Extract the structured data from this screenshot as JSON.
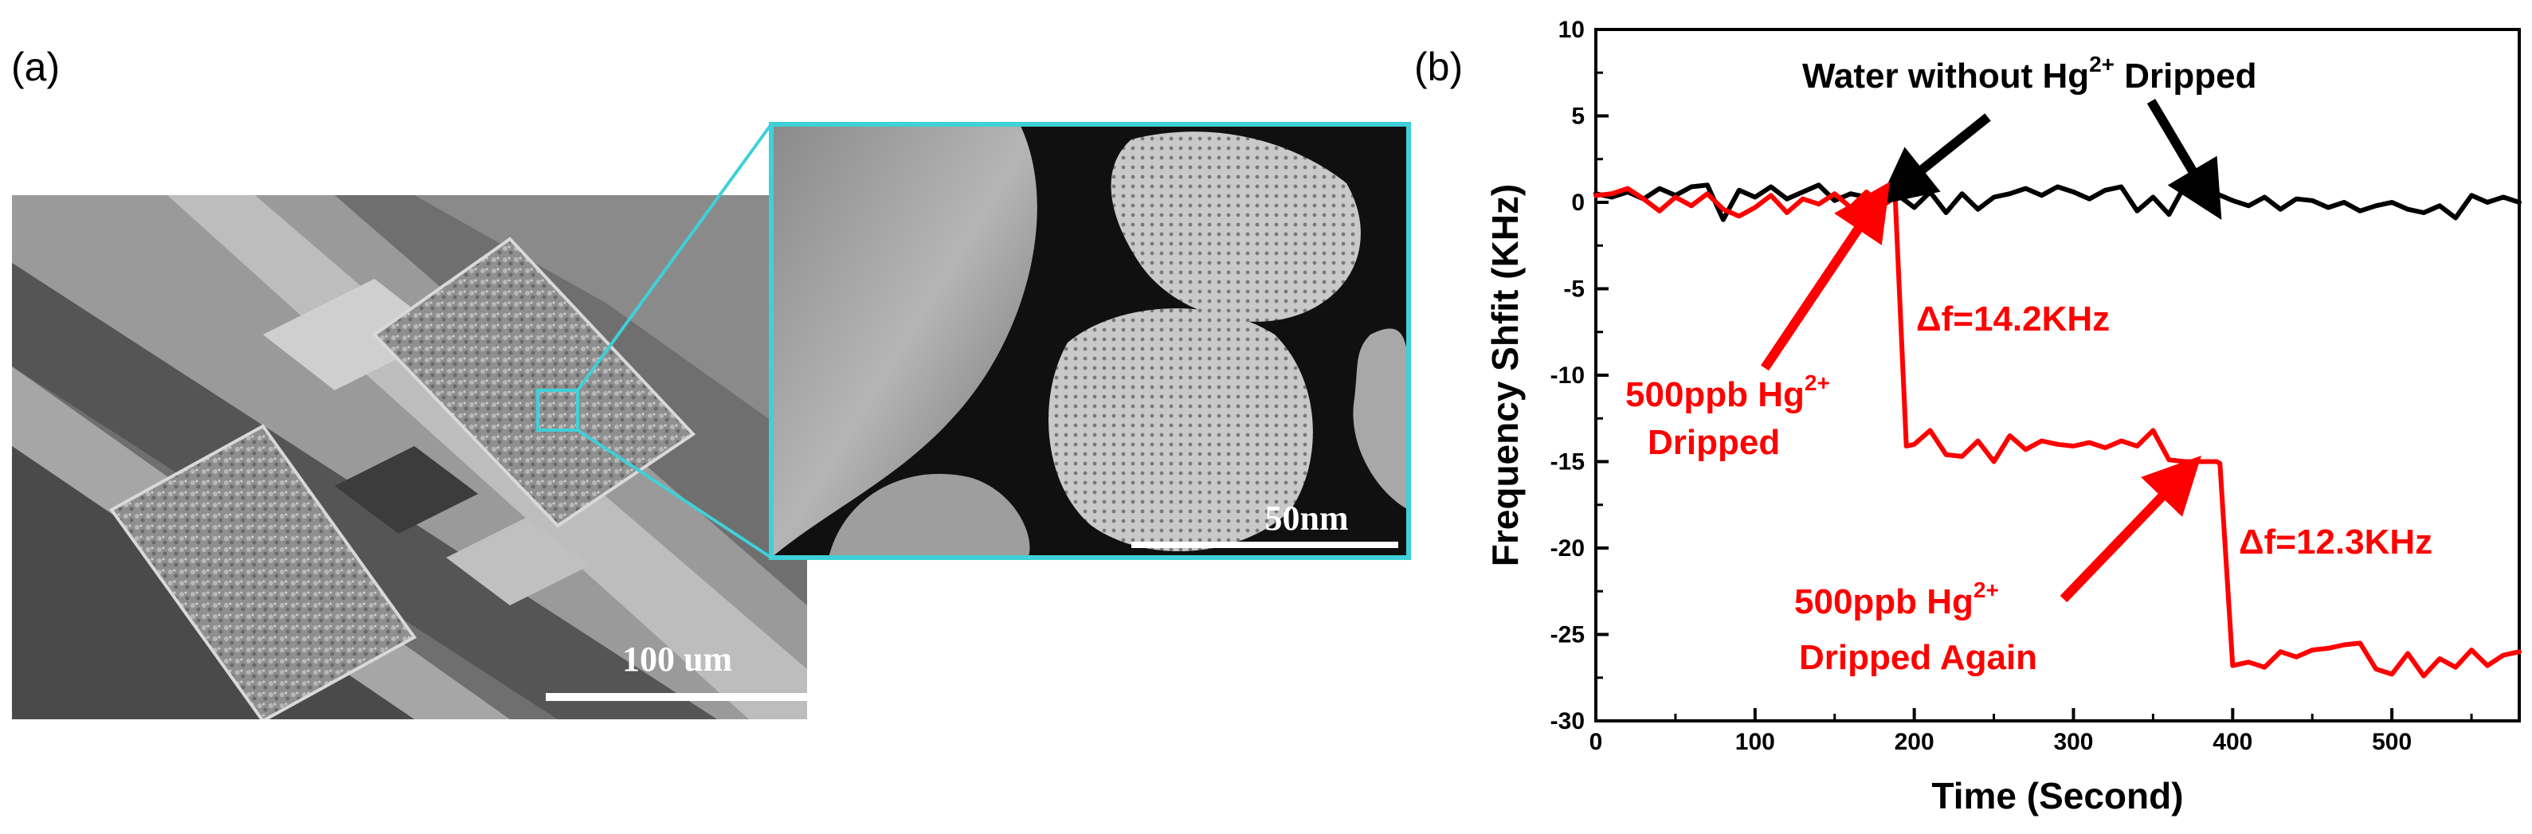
{
  "panel_labels": {
    "a": "(a)",
    "b": "(b)"
  },
  "sem_image": {
    "main_scale_label": "100 um",
    "inset_scale_label": "50nm",
    "highlight_color": "#3fd0d8"
  },
  "chart_data": {
    "type": "line",
    "xlabel": "Time (Second)",
    "ylabel": "Frequency Shfit (KHz)",
    "xlim": [
      0,
      580
    ],
    "ylim": [
      -30,
      10
    ],
    "xticks": [
      0,
      100,
      200,
      300,
      400,
      500
    ],
    "yticks": [
      10,
      5,
      0,
      -5,
      -10,
      -15,
      -20,
      -25,
      -30
    ],
    "grid": false,
    "series": [
      {
        "color": "#000000",
        "x": [
          0,
          10,
          20,
          30,
          40,
          50,
          60,
          70,
          80,
          90,
          100,
          110,
          120,
          130,
          140,
          150,
          160,
          170,
          180,
          190,
          200,
          210,
          220,
          230,
          240,
          250,
          260,
          270,
          280,
          290,
          300,
          310,
          320,
          330,
          340,
          350,
          360,
          370,
          380,
          390,
          400,
          410,
          420,
          430,
          440,
          450,
          460,
          470,
          480,
          490,
          500,
          510,
          520,
          530,
          540,
          550,
          560,
          570,
          580
        ],
        "values": [
          0.5,
          0.3,
          0.6,
          0.2,
          0.8,
          0.4,
          0.9,
          1.0,
          -1.0,
          0.7,
          0.3,
          0.9,
          0.2,
          0.6,
          1.0,
          0.1,
          0.5,
          0.3,
          0.2,
          0.4,
          -0.3,
          0.6,
          -0.6,
          0.5,
          -0.4,
          0.3,
          0.5,
          0.8,
          0.4,
          0.9,
          0.6,
          0.2,
          0.7,
          0.9,
          -0.5,
          0.3,
          -0.7,
          1.0,
          0.2,
          0.5,
          0.1,
          -0.2,
          0.3,
          -0.4,
          0.2,
          0.1,
          -0.3,
          0.0,
          -0.5,
          -0.2,
          0.0,
          -0.4,
          -0.6,
          -0.2,
          -0.9,
          0.4,
          0.0,
          0.3,
          0.0
        ]
      },
      {
        "color": "#ff0000",
        "x": [
          0,
          10,
          20,
          30,
          40,
          50,
          60,
          70,
          80,
          90,
          100,
          110,
          120,
          130,
          140,
          150,
          160,
          170,
          180,
          188,
          195,
          200,
          210,
          220,
          230,
          240,
          250,
          260,
          270,
          280,
          290,
          300,
          310,
          320,
          330,
          340,
          350,
          360,
          370,
          380,
          390,
          392,
          400,
          410,
          420,
          430,
          440,
          450,
          460,
          470,
          480,
          490,
          500,
          510,
          520,
          530,
          540,
          550,
          560,
          570,
          580
        ],
        "values": [
          0.4,
          0.5,
          0.8,
          0.2,
          -0.5,
          0.3,
          -0.2,
          0.5,
          -0.4,
          -0.8,
          -0.3,
          0.4,
          -0.6,
          0.2,
          -0.1,
          0.5,
          -0.3,
          0.6,
          -0.2,
          0.3,
          -14.1,
          -14.0,
          -13.2,
          -14.6,
          -14.7,
          -13.8,
          -15.0,
          -13.5,
          -14.3,
          -13.8,
          -14.0,
          -14.1,
          -13.9,
          -14.2,
          -13.8,
          -14.1,
          -13.2,
          -14.9,
          -15.0,
          -15.0,
          -15.0,
          -15.1,
          -26.8,
          -26.6,
          -26.9,
          -26.0,
          -26.3,
          -25.9,
          -25.8,
          -25.6,
          -25.5,
          -27.0,
          -27.3,
          -26.1,
          -27.4,
          -26.4,
          -26.9,
          -25.9,
          -26.8,
          -26.2,
          -26.0
        ]
      }
    ],
    "annotations": [
      {
        "text_main": "Water without Hg",
        "text_sup": "2+",
        "text_tail": " Dripped",
        "color": "#000000"
      },
      {
        "text": "Δf=14.2KHz",
        "color": "#ff0000"
      },
      {
        "text_main": "500ppb Hg",
        "text_sup": "2+",
        "color": "#ff0000"
      },
      {
        "text": "Dripped",
        "color": "#ff0000"
      },
      {
        "text": "Δf=12.3KHz",
        "color": "#ff0000"
      },
      {
        "text_main": "500ppb Hg",
        "text_sup": "2+",
        "color": "#ff0000"
      },
      {
        "text": "Dripped Again",
        "color": "#ff0000"
      }
    ]
  }
}
